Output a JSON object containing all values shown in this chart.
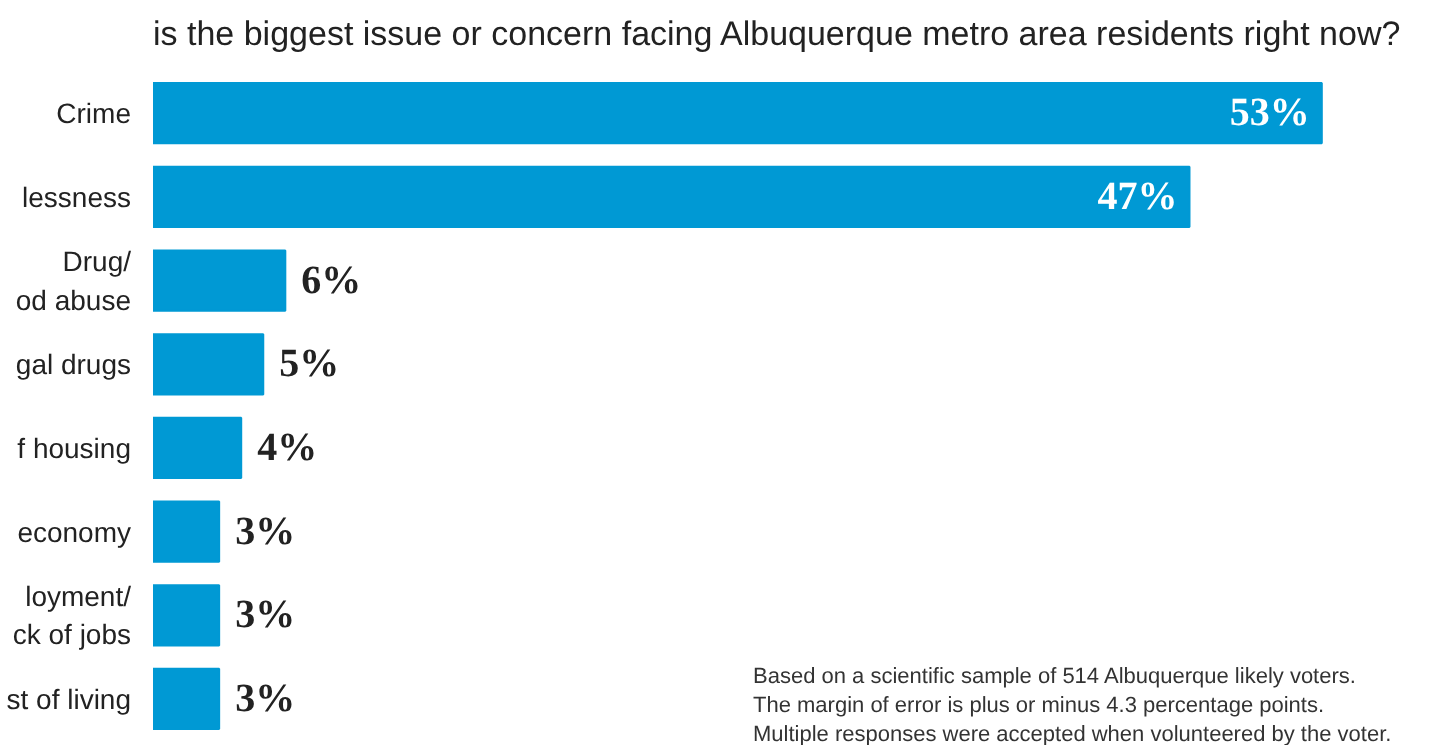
{
  "chart_data": {
    "type": "bar",
    "orientation": "horizontal",
    "title": "is the biggest issue or concern facing Albuquerque metro area residents right now?",
    "categories": [
      "Crime",
      "lessness",
      "Drug/\nod abuse",
      "gal drugs",
      "f housing",
      "economy",
      "loyment/\nck of jobs",
      "st of living"
    ],
    "values": [
      53,
      47,
      6,
      5,
      4,
      3,
      3,
      3
    ],
    "value_labels": [
      "53%",
      "47%",
      "6%",
      "5%",
      "4%",
      "3%",
      "3%",
      "3%"
    ],
    "color": "#0099d4",
    "annotations": [
      "Based on a scientific sample of  514 Albuquerque  likely voters.\nThe margin of error is plus or minus 4.3 percentage points.\nMultiple responses were accepted when volunteered by the voter."
    ]
  }
}
